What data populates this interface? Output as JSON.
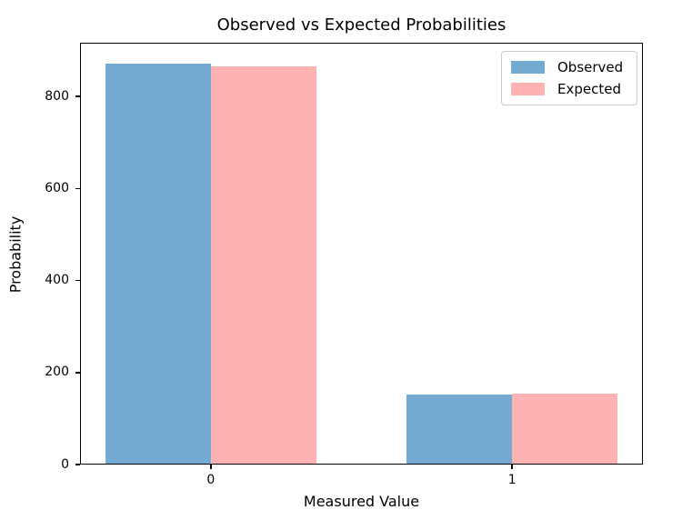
{
  "chart_data": {
    "type": "bar",
    "title": "Observed vs Expected Probabilities",
    "xlabel": "Measured Value",
    "ylabel": "Probability",
    "categories": [
      "0",
      "1"
    ],
    "series": [
      {
        "name": "Observed",
        "color": "#72aad1",
        "values": [
          872,
          153
        ]
      },
      {
        "name": "Expected",
        "color": "#ffb2b2",
        "values": [
          866,
          155
        ]
      }
    ],
    "yticks": [
      0,
      200,
      400,
      600,
      800
    ],
    "ylim": [
      0,
      917
    ],
    "xlim": [
      -0.434,
      1.434
    ],
    "bar_width": 0.35,
    "grid": false,
    "legend_position": "upper right",
    "background_color": "#ffffff",
    "spine_color": "#000000"
  }
}
